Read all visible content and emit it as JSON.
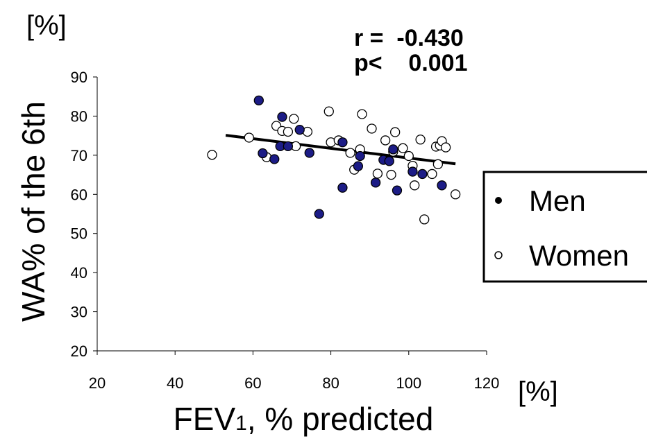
{
  "chart_data": {
    "type": "scatter",
    "xlabel_main": "FEV",
    "xlabel_sub": "1",
    "xlabel_rest": ", % predicted",
    "ylabel": "WA% of the 6th",
    "y_unit": "[%]",
    "x_unit": "[%]",
    "xlim": [
      20,
      120
    ],
    "ylim": [
      20,
      90
    ],
    "x_ticks": [
      "20",
      "40",
      "60",
      "80",
      "100",
      "120"
    ],
    "y_ticks": [
      "20",
      "30",
      "40",
      "50",
      "60",
      "70",
      "80",
      "90"
    ],
    "x_tick_values": [
      20,
      40,
      60,
      80,
      100,
      120
    ],
    "y_tick_values": [
      20,
      30,
      40,
      50,
      60,
      70,
      80,
      90
    ],
    "grid": false,
    "legend_position": "right",
    "stats": {
      "r_line": "r =  -0.430",
      "p_line": "p<    0.001"
    },
    "regression": {
      "x": [
        53,
        112
      ],
      "y": [
        75.1,
        67.8
      ]
    },
    "series": [
      {
        "name": "Men",
        "marker": "filled",
        "color": "#1c1c86",
        "points": [
          [
            61.5,
            84.0
          ],
          [
            62.5,
            70.5
          ],
          [
            65.5,
            69.0
          ],
          [
            67,
            72.3
          ],
          [
            67.5,
            79.8
          ],
          [
            69,
            72.3
          ],
          [
            72,
            76.5
          ],
          [
            74.5,
            70.6
          ],
          [
            77,
            55.0
          ],
          [
            83,
            61.7
          ],
          [
            83,
            73.3
          ],
          [
            87,
            67.2
          ],
          [
            87.5,
            69.8
          ],
          [
            91.5,
            63.0
          ],
          [
            93.5,
            68.8
          ],
          [
            95,
            68.5
          ],
          [
            96,
            71.5
          ],
          [
            97,
            61.0
          ],
          [
            101,
            65.8
          ],
          [
            103.5,
            65.2
          ],
          [
            108.5,
            62.3
          ]
        ]
      },
      {
        "name": "Women",
        "marker": "open",
        "color": "#ffffff",
        "points": [
          [
            49.5,
            70.1
          ],
          [
            59,
            74.5
          ],
          [
            63.5,
            69.5
          ],
          [
            66,
            77.5
          ],
          [
            67.5,
            76.2
          ],
          [
            69,
            76.0
          ],
          [
            70.5,
            79.3
          ],
          [
            71,
            72.3
          ],
          [
            74,
            76.0
          ],
          [
            79.5,
            81.2
          ],
          [
            80,
            73.3
          ],
          [
            82,
            73.8
          ],
          [
            85,
            70.6
          ],
          [
            86,
            66.3
          ],
          [
            87.5,
            71.5
          ],
          [
            88,
            80.5
          ],
          [
            90.5,
            76.8
          ],
          [
            92,
            65.3
          ],
          [
            94,
            73.8
          ],
          [
            95.5,
            65.0
          ],
          [
            96,
            70.9
          ],
          [
            96.5,
            75.9
          ],
          [
            98.5,
            71.8
          ],
          [
            100,
            69.8
          ],
          [
            101,
            67.3
          ],
          [
            101.5,
            62.3
          ],
          [
            103,
            74.0
          ],
          [
            104,
            53.6
          ],
          [
            106,
            65.2
          ],
          [
            107,
            72.2
          ],
          [
            107.5,
            67.7
          ],
          [
            108,
            72.5
          ],
          [
            108.5,
            73.6
          ],
          [
            109.5,
            72.0
          ],
          [
            112,
            60.0
          ]
        ]
      }
    ]
  }
}
